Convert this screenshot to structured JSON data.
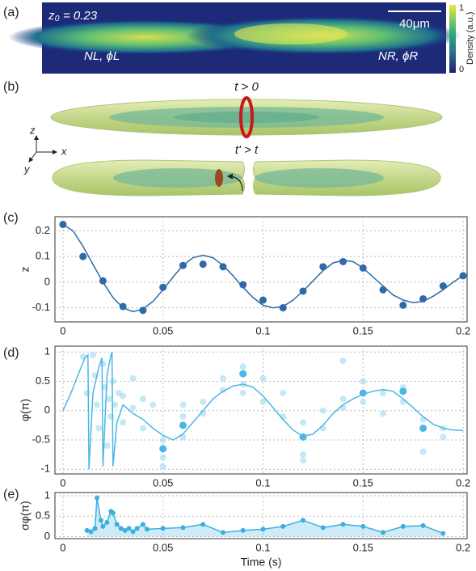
{
  "panel_labels": [
    "(a)",
    "(b)",
    "(c)",
    "(d)",
    "(e)"
  ],
  "panel_a": {
    "z0_label": "z₀ = 0.23",
    "scale_bar": "40μm",
    "left_label": "NL, ϕL",
    "right_label": "NR, ϕR",
    "colorbar_max": "1",
    "colorbar_min": "0",
    "colorbar_label": "Density (a.u.)"
  },
  "panel_b": {
    "top_label": "t > 0",
    "bottom_label": "t' > t",
    "axis_z": "z",
    "axis_x": "x",
    "axis_y": "y"
  },
  "chart_data": [
    {
      "type": "line",
      "ylabel": "z",
      "grid": true,
      "xlim": [
        -0.004,
        0.202
      ],
      "ylim": [
        -0.155,
        0.255
      ],
      "xticks": [
        0,
        0.05,
        0.1,
        0.15,
        0.2
      ],
      "yticks": [
        -0.1,
        0,
        0.1,
        0.2
      ],
      "series": [
        {
          "style": "line",
          "color": "#2e6aa6",
          "x": [
            0,
            0.005,
            0.01,
            0.015,
            0.02,
            0.025,
            0.03,
            0.035,
            0.04,
            0.045,
            0.05,
            0.055,
            0.06,
            0.065,
            0.07,
            0.075,
            0.08,
            0.085,
            0.09,
            0.095,
            0.1,
            0.105,
            0.11,
            0.115,
            0.12,
            0.125,
            0.13,
            0.135,
            0.14,
            0.145,
            0.15,
            0.155,
            0.16,
            0.165,
            0.17,
            0.175,
            0.18,
            0.185,
            0.19,
            0.195,
            0.2
          ],
          "values": [
            0.225,
            0.2,
            0.14,
            0.07,
            0.0,
            -0.06,
            -0.1,
            -0.115,
            -0.105,
            -0.075,
            -0.03,
            0.02,
            0.065,
            0.095,
            0.105,
            0.095,
            0.065,
            0.025,
            -0.02,
            -0.06,
            -0.09,
            -0.1,
            -0.095,
            -0.07,
            -0.035,
            0.005,
            0.045,
            0.075,
            0.085,
            0.08,
            0.055,
            0.02,
            -0.015,
            -0.05,
            -0.07,
            -0.08,
            -0.075,
            -0.055,
            -0.03,
            0.0,
            0.025
          ]
        },
        {
          "style": "markers",
          "color": "#2e6aa6",
          "x": [
            0,
            0.01,
            0.02,
            0.03,
            0.04,
            0.05,
            0.06,
            0.07,
            0.08,
            0.09,
            0.1,
            0.11,
            0.12,
            0.13,
            0.14,
            0.15,
            0.16,
            0.17,
            0.18,
            0.19,
            0.2
          ],
          "values": [
            0.225,
            0.1,
            0.005,
            -0.095,
            -0.11,
            -0.02,
            0.065,
            0.07,
            0.06,
            -0.01,
            -0.07,
            -0.1,
            -0.035,
            0.06,
            0.08,
            0.055,
            -0.03,
            -0.09,
            -0.065,
            -0.015,
            0.025
          ]
        }
      ]
    },
    {
      "type": "line",
      "ylabel": "φ(π)",
      "grid": true,
      "xlim": [
        -0.004,
        0.202
      ],
      "ylim": [
        -1.08,
        1.1
      ],
      "xticks": [
        0,
        0.05,
        0.1,
        0.15,
        0.2
      ],
      "yticks": [
        -1,
        -0.5,
        0,
        0.5,
        1
      ],
      "series": [
        {
          "style": "faint-markers",
          "color": "#9fd8f0",
          "x": [
            0.01,
            0.012,
            0.015,
            0.016,
            0.017,
            0.018,
            0.02,
            0.021,
            0.022,
            0.023,
            0.024,
            0.025,
            0.026,
            0.028,
            0.03,
            0.03,
            0.035,
            0.035,
            0.04,
            0.04,
            0.045,
            0.05,
            0.05,
            0.05,
            0.06,
            0.06,
            0.06,
            0.07,
            0.07,
            0.08,
            0.08,
            0.09,
            0.09,
            0.09,
            0.1,
            0.1,
            0.11,
            0.11,
            0.12,
            0.12,
            0.12,
            0.13,
            0.13,
            0.14,
            0.14,
            0.14,
            0.15,
            0.15,
            0.16,
            0.16,
            0.17,
            0.17,
            0.18,
            0.18,
            0.19,
            0.19
          ],
          "values": [
            0.92,
            0.3,
            0.95,
            0.6,
            0.1,
            -0.3,
            0.8,
            0.4,
            -0.6,
            0.2,
            -0.1,
            0.5,
            0.1,
            0.3,
            0.25,
            -0.2,
            0.55,
            0.05,
            0.2,
            -0.3,
            0.1,
            -0.8,
            -0.5,
            -0.95,
            -0.45,
            -0.1,
            0.1,
            0.15,
            -0.05,
            0.55,
            0.35,
            0.75,
            0.45,
            0.3,
            0.55,
            0.15,
            -0.1,
            0.3,
            -0.2,
            -0.75,
            -0.85,
            -0.3,
            0.0,
            0.85,
            0.2,
            0.05,
            0.5,
            0.15,
            0.3,
            -0.05,
            0.4,
            0.15,
            -0.7,
            -0.15,
            -0.3,
            -0.45
          ]
        },
        {
          "style": "markers",
          "color": "#4cb6e6",
          "x": [
            0.05,
            0.06,
            0.09,
            0.12,
            0.15,
            0.17,
            0.18
          ],
          "values": [
            -0.65,
            -0.25,
            0.63,
            -0.45,
            0.3,
            0.33,
            -0.3
          ]
        },
        {
          "style": "line",
          "color": "#4cb6e6",
          "x": [
            0,
            0.004,
            0.008,
            0.011,
            0.0125,
            0.013,
            0.015,
            0.018,
            0.0195,
            0.02,
            0.022,
            0.024,
            0.0245,
            0.025,
            0.027,
            0.03,
            0.035,
            0.04,
            0.045,
            0.05,
            0.055,
            0.06,
            0.065,
            0.07,
            0.075,
            0.08,
            0.085,
            0.09,
            0.095,
            0.1,
            0.105,
            0.11,
            0.115,
            0.12,
            0.125,
            0.13,
            0.135,
            0.14,
            0.145,
            0.15,
            0.155,
            0.16,
            0.165,
            0.17,
            0.175,
            0.18,
            0.185,
            0.19,
            0.195,
            0.2
          ],
          "values": [
            0,
            0.3,
            0.65,
            0.9,
            0.95,
            -1.0,
            0.3,
            0.75,
            0.9,
            -0.95,
            0.6,
            0.95,
            1.0,
            -0.95,
            -0.2,
            0.1,
            -0.05,
            -0.15,
            -0.3,
            -0.42,
            -0.5,
            -0.4,
            -0.2,
            0.0,
            0.2,
            0.33,
            0.42,
            0.45,
            0.4,
            0.25,
            0.05,
            -0.15,
            -0.33,
            -0.44,
            -0.4,
            -0.25,
            -0.05,
            0.1,
            0.2,
            0.28,
            0.33,
            0.36,
            0.33,
            0.2,
            0.05,
            -0.1,
            -0.23,
            -0.3,
            -0.33,
            -0.34
          ]
        }
      ]
    },
    {
      "type": "line",
      "ylabel": "σφ(π)",
      "xlabel": "Time (s)",
      "grid": true,
      "xlim": [
        -0.004,
        0.202
      ],
      "ylim": [
        -0.05,
        1.08
      ],
      "xticks": [
        0,
        0.05,
        0.1,
        0.15,
        0.2
      ],
      "yticks": [
        0,
        0.5,
        1
      ],
      "series": [
        {
          "style": "area-markers",
          "color": "#3bb0e0",
          "x": [
            0.012,
            0.014,
            0.016,
            0.017,
            0.019,
            0.02,
            0.022,
            0.024,
            0.025,
            0.027,
            0.029,
            0.031,
            0.033,
            0.035,
            0.037,
            0.04,
            0.042,
            0.05,
            0.06,
            0.07,
            0.08,
            0.09,
            0.1,
            0.11,
            0.12,
            0.13,
            0.14,
            0.15,
            0.16,
            0.17,
            0.18,
            0.19
          ],
          "values": [
            0.15,
            0.12,
            0.2,
            0.95,
            0.4,
            0.25,
            0.35,
            0.62,
            0.58,
            0.3,
            0.2,
            0.15,
            0.2,
            0.12,
            0.2,
            0.3,
            0.18,
            0.2,
            0.22,
            0.3,
            0.1,
            0.15,
            0.18,
            0.25,
            0.4,
            0.22,
            0.3,
            0.25,
            0.1,
            0.25,
            0.27,
            0.08
          ]
        }
      ]
    }
  ]
}
